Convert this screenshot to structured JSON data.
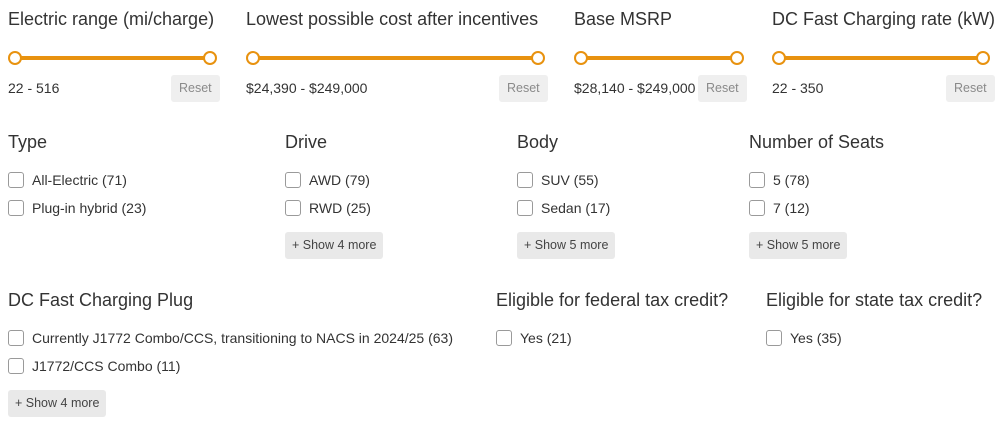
{
  "sliders": [
    {
      "title": "Electric range (mi/charge)",
      "range": "22 - 516",
      "reset": "Reset"
    },
    {
      "title": "Lowest possible cost after incentives",
      "range": "$24,390 - $249,000",
      "reset": "Reset"
    },
    {
      "title": "Base MSRP",
      "range": "$28,140 - $249,000",
      "reset": "Reset"
    },
    {
      "title": "DC Fast Charging rate (kW)",
      "range": "22 - 350",
      "reset": "Reset"
    }
  ],
  "filters": {
    "type": {
      "title": "Type",
      "options": [
        "All-Electric (71)",
        "Plug-in hybrid (23)"
      ]
    },
    "drive": {
      "title": "Drive",
      "options": [
        "AWD (79)",
        "RWD (25)"
      ],
      "more": "+ Show 4 more"
    },
    "body": {
      "title": "Body",
      "options": [
        "SUV (55)",
        "Sedan (17)"
      ],
      "more": "+ Show 5 more"
    },
    "seats": {
      "title": "Number of Seats",
      "options": [
        "5 (78)",
        "7 (12)"
      ],
      "more": "+ Show 5 more"
    },
    "plug": {
      "title": "DC Fast Charging Plug",
      "options": [
        "Currently J1772 Combo/CCS, transitioning to NACS in 2024/25 (63)",
        "J1772/CCS Combo (11)"
      ],
      "more": "+ Show 4 more"
    },
    "federal": {
      "title": "Eligible for federal tax credit?",
      "options": [
        "Yes (21)"
      ]
    },
    "state": {
      "title": "Eligible for state tax credit?",
      "options": [
        "Yes (35)"
      ]
    }
  },
  "colors": {
    "accent": "#e8920f",
    "text": "#333333",
    "button_bg": "#e9e9e9"
  }
}
